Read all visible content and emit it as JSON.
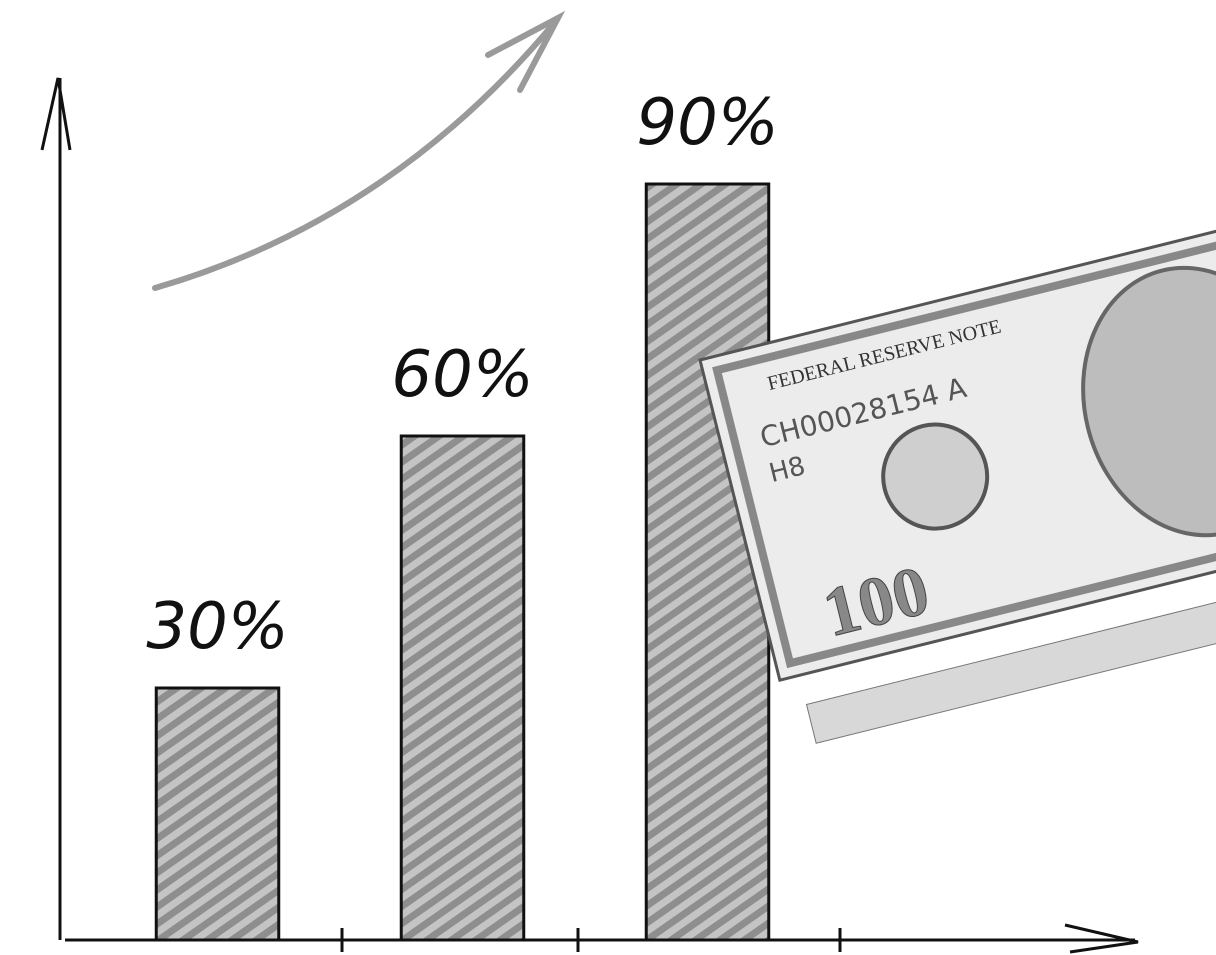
{
  "chart_data": {
    "type": "bar",
    "categories": [
      null,
      null,
      null
    ],
    "values": [
      30,
      60,
      90
    ],
    "value_labels": [
      "30%",
      "60%",
      "90%"
    ],
    "color": "#9a9a9a",
    "ylim": [
      0,
      100
    ],
    "annotations": [
      "FEDERAL RESERVE NOTE",
      "CH00028154 A",
      "H8",
      "100"
    ]
  }
}
